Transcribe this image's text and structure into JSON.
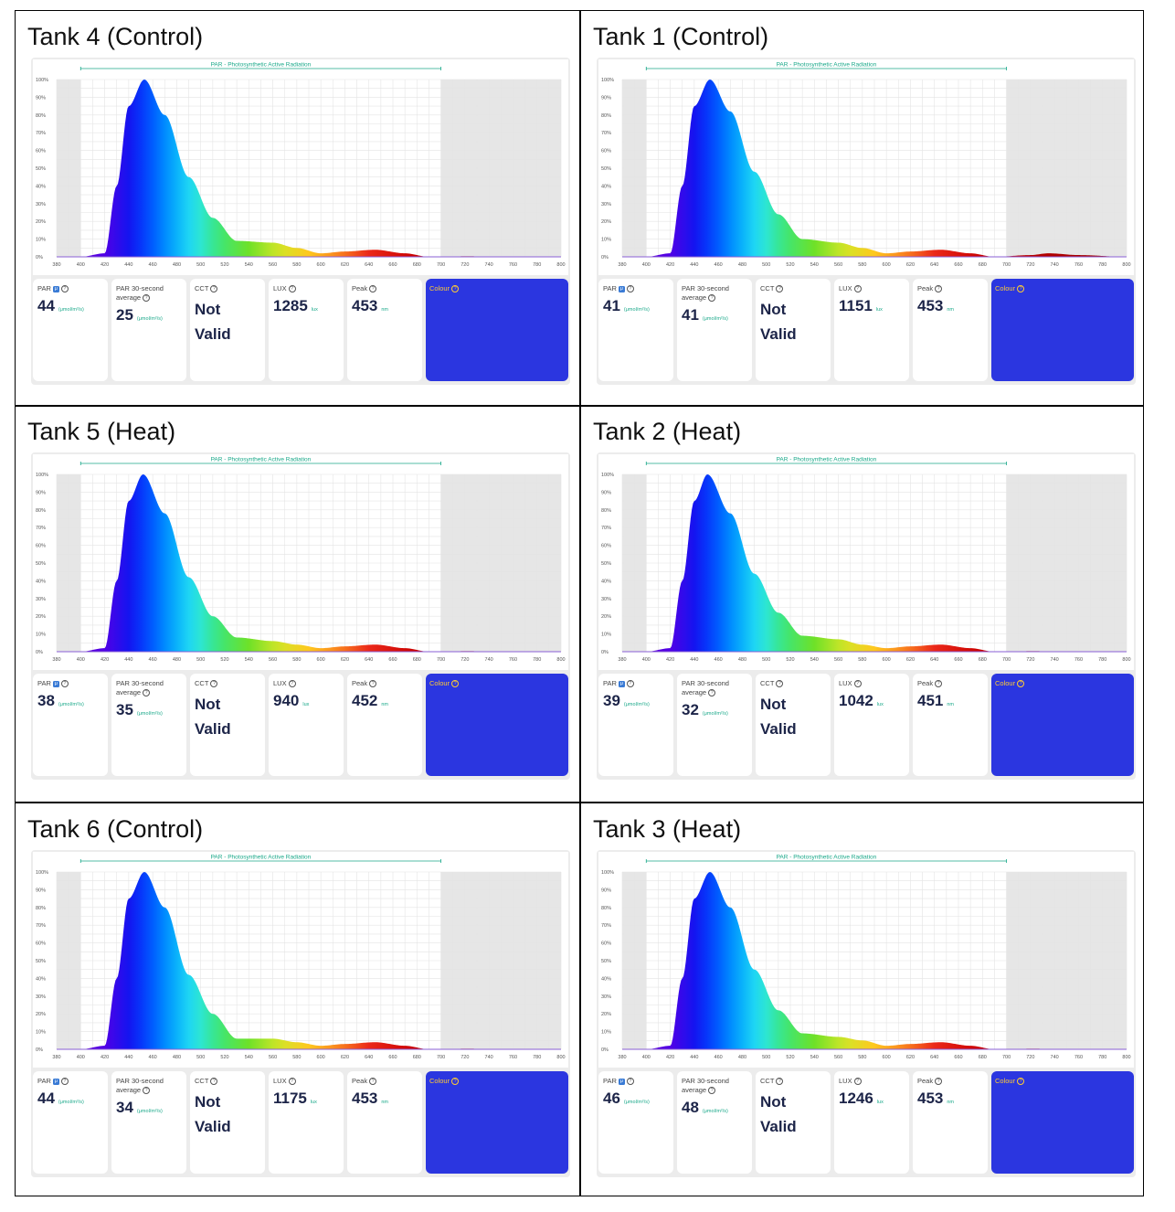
{
  "accent_color": "#1ba98a",
  "colour_swatch": "#2b36e0",
  "labels": {
    "par_band": "PAR - Photosynthetic Active Radiation",
    "par": "PAR",
    "par_badge": "μ",
    "par30_line1": "PAR 30-second",
    "par30_line2": "average",
    "cct": "CCT",
    "lux": "LUX",
    "peak": "Peak",
    "colour": "Colour",
    "par_unit": "(μmol/m²/s)",
    "lux_unit": "lux",
    "peak_unit": "nm",
    "cct_value_line1": "Not",
    "cct_value_line2": "Valid",
    "help": "?"
  },
  "tanks": [
    {
      "title": "Tank 4 (Control)",
      "par": "44",
      "par30": "25",
      "lux": "1285",
      "peak": "453"
    },
    {
      "title": "Tank 1 (Control)",
      "par": "41",
      "par30": "41",
      "lux": "1151",
      "peak": "453"
    },
    {
      "title": "Tank 5 (Heat)",
      "par": "38",
      "par30": "35",
      "lux": "940",
      "peak": "452"
    },
    {
      "title": "Tank 2 (Heat)",
      "par": "39",
      "par30": "32",
      "lux": "1042",
      "peak": "451"
    },
    {
      "title": "Tank 6 (Control)",
      "par": "44",
      "par30": "34",
      "lux": "1175",
      "peak": "453"
    },
    {
      "title": "Tank 3 (Heat)",
      "par": "46",
      "par30": "48",
      "lux": "1246",
      "peak": "453"
    }
  ],
  "chart_data": [
    {
      "type": "area",
      "title": "Tank 4 (Control)",
      "xlabel": "",
      "ylabel": "",
      "xlim": [
        380,
        800
      ],
      "ylim": [
        0,
        100
      ],
      "x": [
        380,
        400,
        420,
        430,
        440,
        453,
        470,
        490,
        510,
        530,
        560,
        580,
        600,
        620,
        645,
        670,
        690,
        720,
        760,
        800
      ],
      "y": [
        0,
        0,
        2,
        40,
        85,
        100,
        80,
        45,
        22,
        9,
        8,
        5,
        2,
        3,
        4,
        2,
        0,
        0.3,
        0.2,
        0
      ],
      "grid": true,
      "xticks": [
        380,
        400,
        420,
        440,
        460,
        480,
        500,
        520,
        540,
        560,
        580,
        600,
        620,
        640,
        660,
        680,
        700,
        720,
        740,
        760,
        780,
        800
      ],
      "yticks": [
        "0%",
        "10%",
        "20%",
        "30%",
        "40%",
        "50%",
        "60%",
        "70%",
        "80%",
        "90%",
        "100%"
      ],
      "shaded_outside_par": [
        400,
        700
      ]
    },
    {
      "type": "area",
      "title": "Tank 1 (Control)",
      "xlabel": "",
      "ylabel": "",
      "xlim": [
        380,
        800
      ],
      "ylim": [
        0,
        100
      ],
      "x": [
        380,
        400,
        420,
        430,
        440,
        453,
        470,
        490,
        510,
        530,
        560,
        580,
        600,
        620,
        645,
        670,
        690,
        720,
        735,
        760,
        800
      ],
      "y": [
        0,
        0,
        2,
        40,
        85,
        100,
        82,
        48,
        24,
        10,
        8,
        5,
        2,
        3,
        4,
        2,
        0,
        1,
        2,
        1,
        0
      ],
      "grid": true,
      "xticks": [
        380,
        400,
        420,
        440,
        460,
        480,
        500,
        520,
        540,
        560,
        580,
        600,
        620,
        640,
        660,
        680,
        700,
        720,
        740,
        760,
        780,
        800
      ],
      "yticks": [
        "0%",
        "10%",
        "20%",
        "30%",
        "40%",
        "50%",
        "60%",
        "70%",
        "80%",
        "90%",
        "100%"
      ],
      "shaded_outside_par": [
        400,
        700
      ]
    },
    {
      "type": "area",
      "title": "Tank 5 (Heat)",
      "xlabel": "",
      "ylabel": "",
      "xlim": [
        380,
        800
      ],
      "ylim": [
        0,
        100
      ],
      "x": [
        380,
        400,
        420,
        430,
        440,
        452,
        470,
        490,
        510,
        530,
        560,
        580,
        600,
        620,
        645,
        670,
        690,
        720,
        760,
        800
      ],
      "y": [
        0,
        0,
        2,
        40,
        85,
        100,
        78,
        42,
        20,
        8,
        6,
        4,
        2,
        3,
        4,
        2,
        0,
        0.3,
        0.2,
        0
      ],
      "grid": true,
      "xticks": [
        380,
        400,
        420,
        440,
        460,
        480,
        500,
        520,
        540,
        560,
        580,
        600,
        620,
        640,
        660,
        680,
        700,
        720,
        740,
        760,
        780,
        800
      ],
      "yticks": [
        "0%",
        "10%",
        "20%",
        "30%",
        "40%",
        "50%",
        "60%",
        "70%",
        "80%",
        "90%",
        "100%"
      ],
      "shaded_outside_par": [
        400,
        700
      ]
    },
    {
      "type": "area",
      "title": "Tank 2 (Heat)",
      "xlabel": "",
      "ylabel": "",
      "xlim": [
        380,
        800
      ],
      "ylim": [
        0,
        100
      ],
      "x": [
        380,
        400,
        420,
        430,
        440,
        451,
        470,
        490,
        510,
        530,
        560,
        580,
        600,
        620,
        645,
        670,
        690,
        720,
        760,
        800
      ],
      "y": [
        0,
        0,
        2,
        40,
        85,
        100,
        78,
        44,
        22,
        9,
        7,
        4,
        2,
        3,
        4,
        2,
        0,
        0.3,
        0.2,
        0
      ],
      "grid": true,
      "xticks": [
        380,
        400,
        420,
        440,
        460,
        480,
        500,
        520,
        540,
        560,
        580,
        600,
        620,
        640,
        660,
        680,
        700,
        720,
        740,
        760,
        780,
        800
      ],
      "yticks": [
        "0%",
        "10%",
        "20%",
        "30%",
        "40%",
        "50%",
        "60%",
        "70%",
        "80%",
        "90%",
        "100%"
      ],
      "shaded_outside_par": [
        400,
        700
      ]
    },
    {
      "type": "area",
      "title": "Tank 6 (Control)",
      "xlabel": "",
      "ylabel": "",
      "xlim": [
        380,
        800
      ],
      "ylim": [
        0,
        100
      ],
      "x": [
        380,
        400,
        420,
        430,
        440,
        453,
        470,
        490,
        510,
        530,
        560,
        580,
        600,
        620,
        645,
        670,
        690,
        720,
        760,
        800
      ],
      "y": [
        0,
        0,
        2,
        40,
        85,
        100,
        80,
        42,
        20,
        6,
        6,
        4,
        2,
        3,
        4,
        2,
        0,
        0.3,
        0.2,
        0
      ],
      "grid": true,
      "xticks": [
        380,
        400,
        420,
        440,
        460,
        480,
        500,
        520,
        540,
        560,
        580,
        600,
        620,
        640,
        660,
        680,
        700,
        720,
        740,
        760,
        780,
        800
      ],
      "yticks": [
        "0%",
        "10%",
        "20%",
        "30%",
        "40%",
        "50%",
        "60%",
        "70%",
        "80%",
        "90%",
        "100%"
      ],
      "shaded_outside_par": [
        400,
        700
      ]
    },
    {
      "type": "area",
      "title": "Tank 3 (Heat)",
      "xlabel": "",
      "ylabel": "",
      "xlim": [
        380,
        800
      ],
      "ylim": [
        0,
        100
      ],
      "x": [
        380,
        400,
        420,
        430,
        440,
        453,
        470,
        490,
        510,
        530,
        560,
        580,
        600,
        620,
        645,
        670,
        690,
        720,
        760,
        800
      ],
      "y": [
        0,
        0,
        2,
        40,
        85,
        100,
        80,
        45,
        22,
        9,
        7,
        5,
        2,
        3,
        4,
        2,
        0,
        0.3,
        0.2,
        0
      ],
      "grid": true,
      "xticks": [
        380,
        400,
        420,
        440,
        460,
        480,
        500,
        520,
        540,
        560,
        580,
        600,
        620,
        640,
        660,
        680,
        700,
        720,
        740,
        760,
        780,
        800
      ],
      "yticks": [
        "0%",
        "10%",
        "20%",
        "30%",
        "40%",
        "50%",
        "60%",
        "70%",
        "80%",
        "90%",
        "100%"
      ],
      "shaded_outside_par": [
        400,
        700
      ]
    }
  ]
}
